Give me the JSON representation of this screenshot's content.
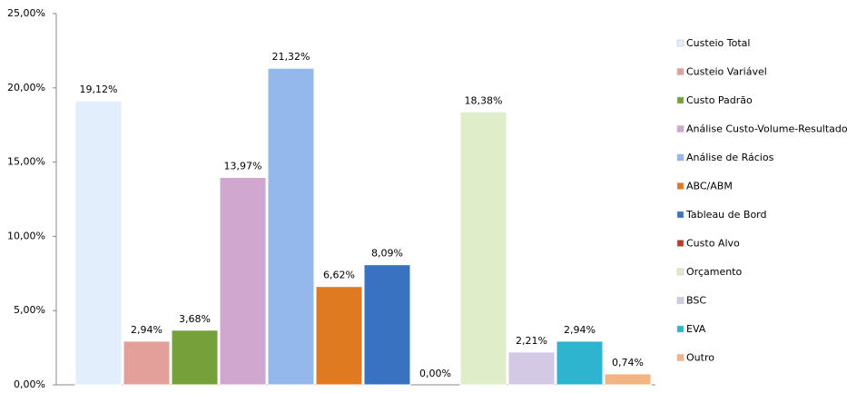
{
  "chart_data": {
    "type": "bar",
    "ylim": [
      0,
      25
    ],
    "yticks": [
      {
        "value": 0,
        "label": "0,00%"
      },
      {
        "value": 5,
        "label": "5,00%"
      },
      {
        "value": 10,
        "label": "10,00%"
      },
      {
        "value": 15,
        "label": "15,00%"
      },
      {
        "value": 20,
        "label": "20,00%"
      },
      {
        "value": 25,
        "label": "25,00%"
      }
    ],
    "legend": "right",
    "series": [
      {
        "name": "Custeio Total",
        "color": "#e3eefc",
        "values": [
          19.12
        ],
        "value_labels": [
          "19,12%"
        ]
      },
      {
        "name": "Custeio Variável",
        "color": "#e39f9a",
        "values": [
          2.94
        ],
        "value_labels": [
          "2,94%"
        ]
      },
      {
        "name": "Custo Padrão",
        "color": "#76a13a",
        "values": [
          3.68
        ],
        "value_labels": [
          "3,68%"
        ]
      },
      {
        "name": "Análise Custo-Volume-Resultado",
        "color": "#cfa7cf",
        "values": [
          13.97
        ],
        "value_labels": [
          "13,97%"
        ]
      },
      {
        "name": "Análise de Rácios",
        "color": "#95b8ec",
        "values": [
          21.32
        ],
        "value_labels": [
          "21,32%"
        ]
      },
      {
        "name": "ABC/ABM",
        "color": "#e07a20",
        "values": [
          6.62
        ],
        "value_labels": [
          "6,62%"
        ]
      },
      {
        "name": "Tableau de Bord",
        "color": "#3a72c2",
        "values": [
          8.09
        ],
        "value_labels": [
          "8,09%"
        ]
      },
      {
        "name": "Custo Alvo",
        "color": "#c0392b",
        "values": [
          0
        ],
        "value_labels": [
          "0,00%"
        ]
      },
      {
        "name": "Orçamento",
        "color": "#dfedc8",
        "values": [
          18.38
        ],
        "value_labels": [
          "18,38%"
        ]
      },
      {
        "name": "BSC",
        "color": "#d3c9e4",
        "values": [
          2.21
        ],
        "value_labels": [
          "2,21%"
        ]
      },
      {
        "name": "EVA",
        "color": "#2fb4d0",
        "values": [
          2.94
        ],
        "value_labels": [
          "2,94%"
        ]
      },
      {
        "name": "Outro",
        "color": "#f2b483",
        "values": [
          0.74
        ],
        "value_labels": [
          "0,74%"
        ]
      }
    ]
  }
}
